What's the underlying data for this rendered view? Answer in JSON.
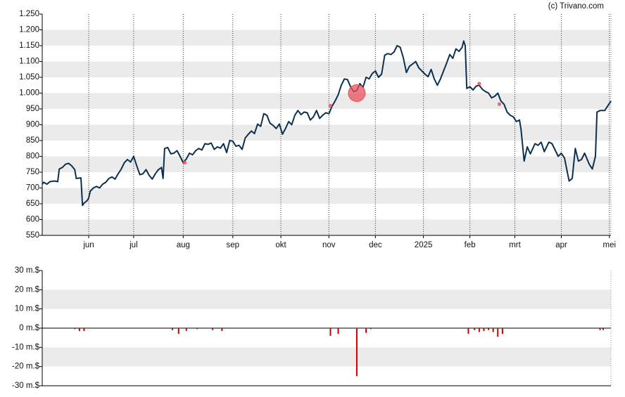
{
  "credit": "(c) Trivano.com",
  "chart_data": [
    {
      "type": "line",
      "color": "#0d3050",
      "x": [
        0,
        1,
        3,
        5,
        8,
        10,
        11,
        13,
        15,
        17,
        19,
        21,
        22,
        25,
        26,
        27,
        29,
        30,
        31,
        33,
        35,
        37,
        39,
        41,
        43,
        45,
        47,
        49,
        51,
        53,
        55,
        57,
        59,
        61,
        63,
        65,
        67,
        69,
        71,
        73,
        75,
        77,
        78,
        79,
        81,
        83,
        85,
        87,
        89,
        91,
        93,
        95,
        97,
        99,
        101,
        103,
        105,
        107,
        109,
        111,
        113,
        115,
        117,
        119,
        121,
        123,
        125,
        127,
        129,
        131,
        133,
        135,
        137,
        139,
        141,
        143,
        145,
        147,
        149,
        151,
        153,
        155,
        157,
        159,
        161,
        163,
        165,
        167,
        169,
        171,
        173,
        175,
        177,
        179,
        181,
        183,
        185,
        187,
        189,
        191,
        193,
        195,
        197,
        199,
        201,
        203,
        205,
        207,
        209,
        211,
        213,
        215,
        217,
        219,
        221,
        223,
        225,
        227,
        229,
        231,
        233,
        235,
        237,
        239,
        241,
        243,
        245,
        247,
        249,
        251,
        253,
        255,
        257,
        259,
        261,
        263,
        265,
        267,
        269,
        271,
        272,
        273,
        274,
        276,
        278,
        280,
        282,
        284,
        286,
        288,
        290,
        292,
        294,
        296,
        298,
        300,
        302,
        304,
        306,
        308,
        309,
        311,
        313,
        315,
        318,
        320,
        322,
        324,
        327,
        329,
        331,
        333,
        335,
        337,
        340,
        342,
        344,
        346,
        348,
        350,
        353,
        355,
        357,
        358,
        360,
        363,
        365,
        367
      ],
      "values": [
        712,
        718,
        712,
        720,
        722,
        720,
        760,
        765,
        775,
        778,
        770,
        758,
        730,
        732,
        645,
        652,
        660,
        668,
        690,
        700,
        705,
        700,
        712,
        718,
        730,
        735,
        728,
        745,
        760,
        780,
        790,
        782,
        800,
        770,
        742,
        745,
        758,
        740,
        728,
        745,
        758,
        765,
        730,
        825,
        828,
        808,
        810,
        818,
        800,
        780,
        792,
        810,
        805,
        818,
        825,
        820,
        840,
        838,
        842,
        822,
        830,
        826,
        840,
        812,
        850,
        848,
        832,
        835,
        822,
        858,
        870,
        880,
        872,
        902,
        895,
        935,
        930,
        905,
        898,
        888,
        902,
        870,
        888,
        910,
        900,
        930,
        945,
        932,
        940,
        938,
        915,
        925,
        945,
        920,
        930,
        938,
        935,
        958,
        975,
        995,
        1025,
        1045,
        1043,
        1020,
        1005,
        1008,
        1030,
        1018,
        1050,
        1045,
        1062,
        1070,
        1050,
        1060,
        1120,
        1125,
        1122,
        1130,
        1150,
        1145,
        1112,
        1065,
        1085,
        1092,
        1100,
        1080,
        1070,
        1060,
        1052,
        1075,
        1045,
        1025,
        1045,
        1070,
        1095,
        1122,
        1110,
        1140,
        1132,
        1145,
        1165,
        1150,
        1015,
        1020,
        1010,
        1022,
        1025,
        1012,
        1005,
        1000,
        985,
        990,
        1000,
        975,
        965,
        940,
        930,
        925,
        910,
        915,
        885,
        785,
        830,
        808,
        840,
        835,
        845,
        815,
        845,
        840,
        820,
        800,
        810,
        795,
        722,
        730,
        825,
        785,
        790,
        810,
        775,
        760,
        800,
        940,
        945,
        945,
        960,
        975
      ],
      "markers": {
        "color": "#e8505b",
        "x": [
          92,
          186,
          203,
          282,
          295
        ],
        "values": [
          780,
          960,
          1000,
          1030,
          965
        ],
        "sizes": [
          2,
          2,
          12,
          2,
          2
        ]
      },
      "xlim": [
        0,
        367
      ],
      "xticks": [
        {
          "value": 30,
          "label": "jun"
        },
        {
          "value": 59,
          "label": "jul"
        },
        {
          "value": 91,
          "label": "aug"
        },
        {
          "value": 123,
          "label": "sep"
        },
        {
          "value": 154,
          "label": "okt"
        },
        {
          "value": 185,
          "label": "nov"
        },
        {
          "value": 215,
          "label": "dec"
        },
        {
          "value": 246,
          "label": "2025"
        },
        {
          "value": 276,
          "label": "feb"
        },
        {
          "value": 305,
          "label": "mrt"
        },
        {
          "value": 335,
          "label": "apr"
        },
        {
          "value": 366,
          "label": "mei"
        }
      ],
      "ylim": [
        550,
        1250
      ],
      "yticks": [
        550,
        600,
        650,
        700,
        750,
        800,
        850,
        900,
        950,
        {
          "value": 1000,
          "label": "1.000"
        },
        {
          "value": 1050,
          "label": "1.050"
        },
        {
          "value": 1100,
          "label": "1.100"
        },
        {
          "value": 1150,
          "label": "1.150"
        },
        {
          "value": 1200,
          "label": "1.200"
        },
        {
          "value": 1250,
          "label": "1.250"
        }
      ],
      "grid": true
    },
    {
      "type": "bar",
      "color": "#cc0000",
      "x": [
        21,
        24,
        27,
        84,
        88,
        93,
        100,
        110,
        116,
        186,
        191,
        203,
        209,
        212,
        275,
        279,
        282,
        285,
        288,
        291,
        294,
        297,
        360,
        362
      ],
      "values": [
        -0.5,
        -1.5,
        -1.5,
        -1,
        -3,
        -1.5,
        -0.5,
        -1,
        -1.5,
        -4,
        -3,
        -25,
        -2.5,
        -0.5,
        -3,
        -1,
        -2,
        -1.5,
        -1,
        -2,
        -4.5,
        -3,
        -1,
        -1
      ],
      "xlim": [
        0,
        367
      ],
      "ylim": [
        -30,
        30
      ],
      "yticks": [
        {
          "value": -30,
          "label": "-30 m.$"
        },
        {
          "value": -20,
          "label": "-20 m.$"
        },
        {
          "value": -10,
          "label": "-10 m.$"
        },
        {
          "value": 0,
          "label": "0 m.$"
        },
        {
          "value": 10,
          "label": "10 m.$"
        },
        {
          "value": 20,
          "label": "20 m.$"
        },
        {
          "value": 30,
          "label": "30 m.$"
        }
      ],
      "grid": true
    }
  ]
}
